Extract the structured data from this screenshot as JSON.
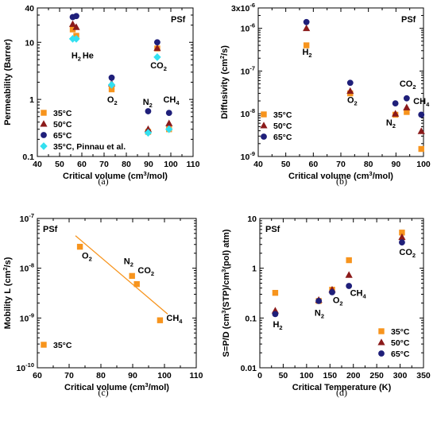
{
  "colors": {
    "s35": "#f7941d",
    "s50": "#8b1a1a",
    "s65": "#1f1f7a",
    "pinnau": "#33e0f0",
    "fit": "#f7941d"
  },
  "chart_data": [
    {
      "type": "scatter",
      "panel_label": "(a)",
      "tag": "PSf",
      "xlabel": "Critical volume (cm³/mol)",
      "ylabel": "Permeability (Barrer)",
      "xlim": [
        40,
        110
      ],
      "ylim": [
        0.1,
        40
      ],
      "yscale": "log",
      "xticks": [
        40,
        50,
        60,
        70,
        80,
        90,
        100,
        110
      ],
      "yticks": [
        0.1,
        1,
        10,
        40
      ],
      "yticklabels": [
        "0.1",
        "1",
        "10",
        "40"
      ],
      "legend_position": "bottom-left",
      "series": [
        {
          "name": "35°C",
          "color_key": "s35",
          "marker": "square",
          "points": [
            [
              55.9,
              16.8
            ],
            [
              57.5,
              13
            ],
            [
              73.4,
              1.5
            ],
            [
              89.8,
              0.27
            ],
            [
              93.9,
              7.8
            ],
            [
              99.2,
              0.3
            ]
          ]
        },
        {
          "name": "50°C",
          "color_key": "s50",
          "marker": "triangle",
          "points": [
            [
              55.9,
              20.8
            ],
            [
              57.5,
              18.4
            ],
            [
              73.4,
              1.9
            ],
            [
              89.8,
              0.3
            ],
            [
              93.9,
              7.9
            ],
            [
              99.2,
              0.38
            ]
          ]
        },
        {
          "name": "65°C",
          "color_key": "s65",
          "marker": "circle",
          "points": [
            [
              55.9,
              27.7
            ],
            [
              57.5,
              28.8
            ],
            [
              73.4,
              2.4
            ],
            [
              89.8,
              0.62
            ],
            [
              93.9,
              10
            ],
            [
              99.2,
              0.58
            ]
          ]
        },
        {
          "name": "35°C, Pinnau et al.",
          "color_key": "pinnau",
          "marker": "diamond",
          "points": [
            [
              55.9,
              11.5
            ],
            [
              57.5,
              11.5
            ],
            [
              73.4,
              1.8
            ],
            [
              89.8,
              0.26
            ],
            [
              93.9,
              5.5
            ],
            [
              99.2,
              0.3
            ]
          ]
        }
      ],
      "annotations": [
        {
          "text": "H",
          "sub": "2",
          "x": 55.3,
          "y": 5.2
        },
        {
          "text": "He",
          "sub": "",
          "x": 60.3,
          "y": 5.2
        },
        {
          "text": "O",
          "sub": "2",
          "x": 71.4,
          "y": 0.88
        },
        {
          "text": "CO",
          "sub": "2",
          "x": 90.8,
          "y": 3.5
        },
        {
          "text": "N",
          "sub": "2",
          "x": 87.4,
          "y": 0.8
        },
        {
          "text": "CH",
          "sub": "4",
          "x": 96.6,
          "y": 0.88
        }
      ]
    },
    {
      "type": "scatter",
      "panel_label": "(b)",
      "tag": "PSf",
      "xlabel": "Critical volume (cm³/mol)",
      "ylabel": "Diffusivity (cm²/s)",
      "xlim": [
        40,
        100
      ],
      "ylim": [
        1e-09,
        3e-06
      ],
      "yscale": "log",
      "xticks": [
        40,
        50,
        60,
        70,
        80,
        90,
        100
      ],
      "yticks": [
        1e-09,
        1e-08,
        1e-07,
        1e-06,
        3e-06
      ],
      "ytick_mantissa": [
        "10",
        "10",
        "10",
        "10",
        "3x10"
      ],
      "ytick_exponent": [
        "-9",
        "-8",
        "-7",
        "-6",
        "-6"
      ],
      "legend_position": "bottom-left",
      "series": [
        {
          "name": "35°C",
          "color_key": "s35",
          "marker": "square",
          "points": [
            [
              57.5,
              4e-07
            ],
            [
              73.4,
              3e-08
            ],
            [
              89.8,
              9.5e-09
            ],
            [
              93.9,
              1.1e-08
            ],
            [
              99.2,
              1.5e-09
            ]
          ]
        },
        {
          "name": "50°C",
          "color_key": "s50",
          "marker": "triangle",
          "points": [
            [
              57.5,
              1e-06
            ],
            [
              73.4,
              3.4e-08
            ],
            [
              89.8,
              1e-08
            ],
            [
              93.9,
              1.4e-08
            ],
            [
              99.2,
              3.9e-09
            ]
          ]
        },
        {
          "name": "65°C",
          "color_key": "s65",
          "marker": "circle",
          "points": [
            [
              57.5,
              1.4e-06
            ],
            [
              73.4,
              5.3e-08
            ],
            [
              89.8,
              1.75e-08
            ],
            [
              93.9,
              2.3e-08
            ],
            [
              99.2,
              9.5e-09
            ]
          ]
        }
      ],
      "annotations": [
        {
          "text": "H",
          "sub": "2",
          "x": 56,
          "y": 2.4e-07
        },
        {
          "text": "O",
          "sub": "2",
          "x": 72.3,
          "y": 1.8e-08
        },
        {
          "text": "CO",
          "sub": "2",
          "x": 91.3,
          "y": 4.3e-08
        },
        {
          "text": "CH",
          "sub": "4",
          "x": 96.3,
          "y": 1.7e-08
        },
        {
          "text": "N",
          "sub": "2",
          "x": 86.4,
          "y": 5.3e-09
        }
      ]
    },
    {
      "type": "scatter",
      "panel_label": "(c)",
      "tag": "PSf",
      "xlabel": "Critical volume (cm³/mol)",
      "ylabel": "Mobility L (cm²/s)",
      "xlim": [
        60,
        110
      ],
      "ylim": [
        1e-10,
        1e-07
      ],
      "yscale": "log",
      "xticks": [
        60,
        70,
        80,
        90,
        100,
        110
      ],
      "yticks": [
        1e-10,
        1e-09,
        1e-08,
        1e-07
      ],
      "ytick_mantissa": [
        "10",
        "10",
        "10",
        "10"
      ],
      "ytick_exponent": [
        "-10",
        "-9",
        "-8",
        "-7"
      ],
      "legend_position": "bottom-left",
      "series": [
        {
          "name": "35°C",
          "color_key": "s35",
          "marker": "square",
          "points": [
            [
              73.4,
              2.7e-08
            ],
            [
              89.8,
              7e-09
            ],
            [
              91.3,
              4.8e-09
            ],
            [
              98.6,
              9e-10
            ]
          ]
        }
      ],
      "fit_line": [
        [
          72,
          4.5e-08
        ],
        [
          101,
          1.2e-09
        ]
      ],
      "annotations": [
        {
          "text": "O",
          "sub": "2",
          "x": 74,
          "y": 1.55e-08
        },
        {
          "text": "N",
          "sub": "2",
          "x": 87.2,
          "y": 1.22e-08
        },
        {
          "text": "CO",
          "sub": "2",
          "x": 91.6,
          "y": 7.9e-09
        },
        {
          "text": "CH",
          "sub": "4",
          "x": 100.6,
          "y": 8.7e-10
        }
      ]
    },
    {
      "type": "scatter",
      "panel_label": "(d)",
      "tag": "PSf",
      "xlabel": "Critical Temperature (K)",
      "ylabel": "S=P/D (cm³(STP)/cm³(pol) atm)",
      "xlim": [
        0,
        350
      ],
      "ylim": [
        0.01,
        10
      ],
      "yscale": "log",
      "xticks": [
        0,
        50,
        100,
        150,
        200,
        250,
        300,
        350
      ],
      "yticks": [
        0.01,
        0.1,
        1,
        10
      ],
      "yticklabels": [
        "0.01",
        "0.1",
        "1",
        "10"
      ],
      "legend_position": "bottom-right",
      "series": [
        {
          "name": "35°C",
          "color_key": "s35",
          "marker": "square",
          "points": [
            [
              33,
              0.32
            ],
            [
              126,
              0.22
            ],
            [
              154.6,
              0.37
            ],
            [
              190.6,
              1.45
            ],
            [
              304,
              5.2
            ]
          ]
        },
        {
          "name": "50°C",
          "color_key": "s50",
          "marker": "triangle",
          "points": [
            [
              33,
              0.14
            ],
            [
              126,
              0.23
            ],
            [
              154.6,
              0.37
            ],
            [
              190.6,
              0.73
            ],
            [
              304,
              4.2
            ]
          ]
        },
        {
          "name": "65°C",
          "color_key": "s65",
          "marker": "circle",
          "points": [
            [
              33,
              0.12
            ],
            [
              126,
              0.22
            ],
            [
              154.6,
              0.33
            ],
            [
              190.6,
              0.44
            ],
            [
              304,
              3.3
            ]
          ]
        }
      ],
      "annotations": [
        {
          "text": "H",
          "sub": "2",
          "x": 28,
          "y": 0.065
        },
        {
          "text": "N",
          "sub": "2",
          "x": 117,
          "y": 0.11
        },
        {
          "text": "O",
          "sub": "2",
          "x": 156,
          "y": 0.2
        },
        {
          "text": "CH",
          "sub": "4",
          "x": 193,
          "y": 0.28
        },
        {
          "text": "CO",
          "sub": "2",
          "x": 298,
          "y": 1.85
        }
      ]
    }
  ]
}
